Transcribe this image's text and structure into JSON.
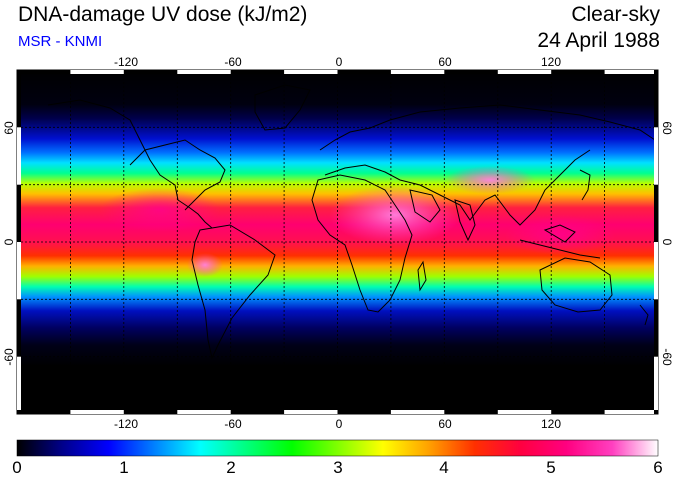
{
  "header": {
    "title": "DNA-damage UV dose (kJ/m2)",
    "subtitle": "MSR - KNMI",
    "condition": "Clear-sky",
    "date": "24 April 1988"
  },
  "map": {
    "lon_ticks": [
      "-120",
      "-60",
      "0",
      "60",
      "120"
    ],
    "lat_ticks": [
      "60",
      "0",
      "-60"
    ],
    "gridlines": "dashed, every 30 degrees",
    "projection": "equirectangular",
    "lon_range": [
      -180,
      180
    ],
    "lat_range": [
      -90,
      90
    ]
  },
  "colorbar": {
    "labels": [
      "0",
      "1",
      "2",
      "3",
      "4",
      "5",
      "6"
    ],
    "min": 0,
    "max": 6,
    "colors": [
      "#000000",
      "#00008b",
      "#0000ff",
      "#0080ff",
      "#00ffff",
      "#00ff80",
      "#00ff00",
      "#80ff00",
      "#ffff00",
      "#ffa000",
      "#ff3000",
      "#ff0040",
      "#ff0080",
      "#ff40c0",
      "#ffffff"
    ]
  }
}
